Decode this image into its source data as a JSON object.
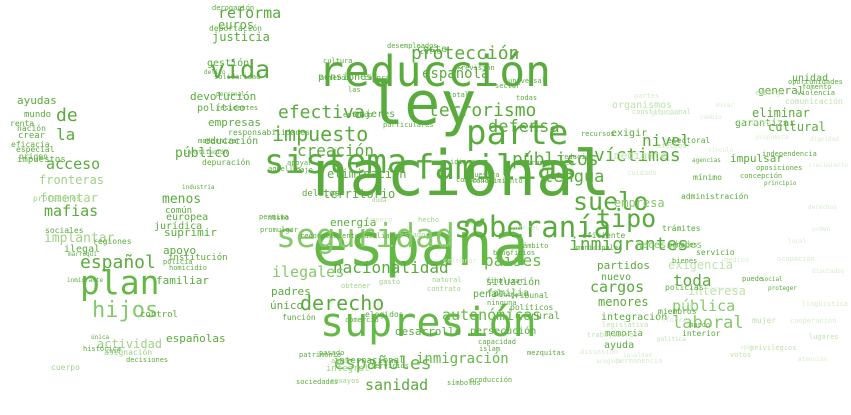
{
  "colors": {
    "c0": "#5aab3d",
    "c1": "#64b846",
    "c2": "#72c052",
    "c3": "#86c96a",
    "c4": "#9fd387",
    "c5": "#bfe2ae",
    "c6": "#d6edcb"
  },
  "words": [
    {
      "text": "nacional",
      "color": "c0"
    },
    {
      "text": "españa",
      "color": "c1"
    },
    {
      "text": "ley",
      "color": "c0"
    },
    {
      "text": "reducción",
      "color": "c0"
    },
    {
      "text": "supresión",
      "color": "c1"
    },
    {
      "text": "sistema",
      "color": "c0"
    },
    {
      "text": "familias",
      "color": "c0"
    },
    {
      "text": "parte",
      "color": "c0"
    },
    {
      "text": "seguridad",
      "color": "c3"
    },
    {
      "text": "plan",
      "color": "c1"
    },
    {
      "text": "soberanía",
      "color": "c0"
    },
    {
      "text": "suelo",
      "color": "c0"
    },
    {
      "text": "hijos",
      "color": "c3"
    },
    {
      "text": "tipo",
      "color": "c0"
    },
    {
      "text": "protección",
      "color": "c0"
    },
    {
      "text": "terrorismo",
      "color": "c0"
    },
    {
      "text": "impuesto",
      "color": "c0"
    },
    {
      "text": "efectiva",
      "color": "c0"
    },
    {
      "text": "derecho",
      "color": "c0"
    },
    {
      "text": "vida",
      "color": "c0"
    },
    {
      "text": "españoles",
      "color": "c1"
    },
    {
      "text": "públicos",
      "color": "c0"
    },
    {
      "text": "lengua",
      "color": "c0"
    },
    {
      "text": "víctimas",
      "color": "c0"
    },
    {
      "text": "inmigrantes",
      "color": "c0"
    },
    {
      "text": "nacionalidad",
      "color": "c0"
    },
    {
      "text": "autonómicas",
      "color": "c1"
    },
    {
      "text": "defensa",
      "color": "c0"
    },
    {
      "text": "creación",
      "color": "c0"
    },
    {
      "text": "español",
      "color": "c0"
    },
    {
      "text": "española",
      "color": "c0"
    },
    {
      "text": "nivel",
      "color": "c0"
    },
    {
      "text": "países",
      "color": "c1"
    },
    {
      "text": "reforma",
      "color": "c0"
    },
    {
      "text": "acceso",
      "color": "c0"
    },
    {
      "text": "ilegales",
      "color": "c3"
    },
    {
      "text": "laboral",
      "color": "c3"
    },
    {
      "text": "toda",
      "color": "c0"
    },
    {
      "text": "pública",
      "color": "c3"
    },
    {
      "text": "cargos",
      "color": "c0"
    },
    {
      "text": "sanidad",
      "color": "c0"
    },
    {
      "text": "inmigración",
      "color": "c1"
    },
    {
      "text": "de",
      "color": "c0"
    },
    {
      "text": "la",
      "color": "c0"
    },
    {
      "text": "eliminación",
      "color": "c0"
    },
    {
      "text": "mafias",
      "color": "c0"
    },
    {
      "text": "justicia",
      "color": "c0"
    },
    {
      "text": "menos",
      "color": "c0"
    },
    {
      "text": "territorio",
      "color": "c0"
    },
    {
      "text": "desarrollo",
      "color": "c0"
    },
    {
      "text": "menores",
      "color": "c0"
    },
    {
      "text": "pensiones",
      "color": "c0"
    },
    {
      "text": "mujeres",
      "color": "c0"
    },
    {
      "text": "persecución",
      "color": "c0"
    },
    {
      "text": "empresas",
      "color": "c0"
    },
    {
      "text": "político",
      "color": "c0"
    },
    {
      "text": "ayudas",
      "color": "c0"
    },
    {
      "text": "euros",
      "color": "c0"
    },
    {
      "text": "general",
      "color": "c0"
    },
    {
      "text": "empresa",
      "color": "c3"
    },
    {
      "text": "familiar",
      "color": "c0"
    },
    {
      "text": "padres",
      "color": "c0"
    },
    {
      "text": "europea",
      "color": "c0"
    },
    {
      "text": "situación",
      "color": "c0"
    },
    {
      "text": "integración",
      "color": "c0"
    },
    {
      "text": "apoyo",
      "color": "c0"
    },
    {
      "text": "suprimir",
      "color": "c0"
    },
    {
      "text": "devolución",
      "color": "c0"
    },
    {
      "text": "público",
      "color": "c0"
    },
    {
      "text": "educación",
      "color": "c0"
    },
    {
      "text": "partidos",
      "color": "c0"
    },
    {
      "text": "nuevo",
      "color": "c0"
    },
    {
      "text": "rural",
      "color": "c0"
    },
    {
      "text": "penal",
      "color": "c0"
    },
    {
      "text": "familia",
      "color": "c0"
    },
    {
      "text": "cultural",
      "color": "c0"
    },
    {
      "text": "eliminar",
      "color": "c0"
    },
    {
      "text": "garantizar",
      "color": "c0"
    },
    {
      "text": "impulsar",
      "color": "c0"
    },
    {
      "text": "exigir",
      "color": "c0"
    },
    {
      "text": "españolas",
      "color": "c0"
    },
    {
      "text": "único",
      "color": "c0"
    },
    {
      "text": "fomentar",
      "color": "c4"
    },
    {
      "text": "implantar",
      "color": "c4"
    },
    {
      "text": "fronteras",
      "color": "c4"
    },
    {
      "text": "actividad",
      "color": "c4"
    },
    {
      "text": "exigencia",
      "color": "c5"
    },
    {
      "text": "interesa",
      "color": "c5"
    },
    {
      "text": "organismos",
      "color": "c5"
    },
    {
      "text": "mediante",
      "color": "c5"
    },
    {
      "text": "necesidades",
      "color": "c3"
    },
    {
      "text": "unidad",
      "color": "c0"
    },
    {
      "text": "gestión",
      "color": "c0"
    },
    {
      "text": "mundo",
      "color": "c0"
    },
    {
      "text": "crear",
      "color": "c0"
    },
    {
      "text": "origen",
      "color": "c0"
    },
    {
      "text": "sociales",
      "color": "c0"
    },
    {
      "text": "impuestos",
      "color": "c0"
    },
    {
      "text": "ilegal",
      "color": "c0"
    },
    {
      "text": "jurídica",
      "color": "c0"
    },
    {
      "text": "común",
      "color": "c0"
    },
    {
      "text": "institución",
      "color": "c0"
    },
    {
      "text": "regiones",
      "color": "c0"
    },
    {
      "text": "energía",
      "color": "c0"
    },
    {
      "text": "comercio",
      "color": "c0"
    },
    {
      "text": "función",
      "color": "c0"
    },
    {
      "text": "elegidos",
      "color": "c0"
    },
    {
      "text": "políticos",
      "color": "c0"
    },
    {
      "text": "tribunal",
      "color": "c0"
    },
    {
      "text": "coste",
      "color": "c0"
    },
    {
      "text": "control",
      "color": "c0"
    },
    {
      "text": "ayuda",
      "color": "c0"
    },
    {
      "text": "memoria",
      "color": "c0"
    },
    {
      "text": "policías",
      "color": "c0"
    },
    {
      "text": "miembros",
      "color": "c0"
    },
    {
      "text": "internacional",
      "color": "c0"
    },
    {
      "text": "integral",
      "color": "c4"
    },
    {
      "text": "producción",
      "color": "c0"
    },
    {
      "text": "capacidad",
      "color": "c0"
    },
    {
      "text": "administración",
      "color": "c0"
    },
    {
      "text": "trámites",
      "color": "c0"
    },
    {
      "text": "mínimo",
      "color": "c0"
    },
    {
      "text": "electoral",
      "color": "c0"
    },
    {
      "text": "responsabilidades",
      "color": "c0"
    },
    {
      "text": "particulares",
      "color": "c0"
    },
    {
      "text": "delitos",
      "color": "c0"
    },
    {
      "text": "combatir",
      "color": "c0"
    },
    {
      "text": "depuración",
      "color": "c0"
    },
    {
      "text": "deportación",
      "color": "c0"
    },
    {
      "text": "derogación",
      "color": "c0"
    },
    {
      "text": "revisión",
      "color": "c0"
    },
    {
      "text": "solidaridad",
      "color": "c0"
    },
    {
      "text": "residentes",
      "color": "c0"
    },
    {
      "text": "modernizar",
      "color": "c0"
    },
    {
      "text": "policía",
      "color": "c0"
    },
    {
      "text": "mezquitas",
      "color": "c0"
    },
    {
      "text": "idioma",
      "color": "c0"
    },
    {
      "text": "histórica",
      "color": "c0"
    },
    {
      "text": "decisiones",
      "color": "c0"
    },
    {
      "text": "sociedades",
      "color": "c0"
    },
    {
      "text": "islam",
      "color": "c0"
    },
    {
      "text": "símbolos",
      "color": "c0"
    },
    {
      "text": "servicios",
      "color": "c0"
    },
    {
      "text": "universal",
      "color": "c0"
    },
    {
      "text": "sector",
      "color": "c0"
    },
    {
      "text": "transporte",
      "color": "c0"
    },
    {
      "text": "conocimiento",
      "color": "c0"
    },
    {
      "text": "nuestra",
      "color": "c0"
    },
    {
      "text": "interior",
      "color": "c0"
    },
    {
      "text": "marco",
      "color": "c0"
    },
    {
      "text": "social",
      "color": "c0"
    },
    {
      "text": "puede",
      "color": "c0"
    },
    {
      "text": "penales",
      "color": "c0"
    },
    {
      "text": "proteger",
      "color": "c0"
    },
    {
      "text": "bienes",
      "color": "c0"
    },
    {
      "text": "servicio",
      "color": "c0"
    },
    {
      "text": "principio",
      "color": "c0"
    },
    {
      "text": "oposiciones",
      "color": "c0"
    },
    {
      "text": "concepción",
      "color": "c0"
    },
    {
      "text": "independencia",
      "color": "c0"
    },
    {
      "text": "oportunidades",
      "color": "c0"
    },
    {
      "text": "violencia",
      "color": "c0"
    },
    {
      "text": "fomento",
      "color": "c0"
    },
    {
      "text": "municipales",
      "color": "c0"
    },
    {
      "text": "constitucional",
      "color": "c5"
    },
    {
      "text": "mujer",
      "color": "c5"
    },
    {
      "text": "lugares",
      "color": "c5"
    },
    {
      "text": "votos",
      "color": "c5"
    },
    {
      "text": "privilegios",
      "color": "c5"
    },
    {
      "text": "trabajadores",
      "color": "c5"
    },
    {
      "text": "legislativa",
      "color": "c5"
    },
    {
      "text": "política",
      "color": "c5"
    },
    {
      "text": "efectos",
      "color": "c5"
    },
    {
      "text": "embargo",
      "color": "c5"
    },
    {
      "text": "comunicación",
      "color": "c5"
    },
    {
      "text": "agencias",
      "color": "c0"
    },
    {
      "text": "desempleados",
      "color": "c0"
    },
    {
      "text": "culto",
      "color": "c0"
    },
    {
      "text": "cultura",
      "color": "c0"
    },
    {
      "text": "compra",
      "color": "c0"
    },
    {
      "text": "total",
      "color": "c0"
    },
    {
      "text": "todas",
      "color": "c0"
    },
    {
      "text": "reducir",
      "color": "c0"
    },
    {
      "text": "recursos",
      "color": "c0"
    },
    {
      "text": "arraigo",
      "color": "c0"
    },
    {
      "text": "finalizar",
      "color": "c0"
    },
    {
      "text": "beneficios",
      "color": "c0"
    },
    {
      "text": "ninguna",
      "color": "c0"
    },
    {
      "text": "patrimonio",
      "color": "c0"
    },
    {
      "text": "pasado",
      "color": "c0"
    },
    {
      "text": "apoyar",
      "color": "c0"
    },
    {
      "text": "aquellos",
      "color": "c0"
    },
    {
      "text": "bajo",
      "color": "c0"
    },
    {
      "text": "permita",
      "color": "c0"
    },
    {
      "text": "promulgar",
      "color": "c0"
    },
    {
      "text": "reconocimiento",
      "color": "c0"
    },
    {
      "text": "familiares",
      "color": "c0"
    },
    {
      "text": "ámbito",
      "color": "c0"
    },
    {
      "text": "mismo",
      "color": "c0"
    },
    {
      "text": "número",
      "color": "c0"
    },
    {
      "text": "entrado",
      "color": "c0"
    },
    {
      "text": "las",
      "color": "c0"
    },
    {
      "text": "eficiente",
      "color": "c0"
    },
    {
      "text": "industria",
      "color": "c0"
    },
    {
      "text": "constitución",
      "color": "c0"
    },
    {
      "text": "personal",
      "color": "c0"
    },
    {
      "text": "nación",
      "color": "c0"
    },
    {
      "text": "renta",
      "color": "c0"
    },
    {
      "text": "eficacia",
      "color": "c0"
    },
    {
      "text": "especial",
      "color": "c0"
    },
    {
      "text": "marroquí",
      "color": "c0"
    },
    {
      "text": "inmigrante",
      "color": "c0"
    },
    {
      "text": "delito",
      "color": "c0"
    },
    {
      "text": "única",
      "color": "c0"
    },
    {
      "text": "caso",
      "color": "c0"
    },
    {
      "text": "homicidio",
      "color": "c0"
    },
    {
      "text": "profesores",
      "color": "c4"
    },
    {
      "text": "asignación",
      "color": "c4"
    },
    {
      "text": "cuerpo",
      "color": "c4"
    },
    {
      "text": "ensayos",
      "color": "c4"
    },
    {
      "text": "natural",
      "color": "c4"
    },
    {
      "text": "gasto",
      "color": "c4"
    },
    {
      "text": "agua",
      "color": "c4"
    },
    {
      "text": "obtener",
      "color": "c4"
    },
    {
      "text": "duda",
      "color": "c4"
    },
    {
      "text": "hecho",
      "color": "c4"
    },
    {
      "text": "contrato",
      "color": "c4"
    },
    {
      "text": "estado",
      "color": "c4"
    },
    {
      "text": "celebrar",
      "color": "c6"
    },
    {
      "text": "genero",
      "color": "c6"
    },
    {
      "text": "interés",
      "color": "c6"
    },
    {
      "text": "disuasión",
      "color": "c6"
    },
    {
      "text": "igualdad",
      "color": "c6"
    },
    {
      "text": "reforzar",
      "color": "c6"
    },
    {
      "text": "cooperación",
      "color": "c6"
    },
    {
      "text": "apoyo",
      "color": "c6"
    },
    {
      "text": "atención",
      "color": "c6"
    },
    {
      "text": "cuidado",
      "color": "c6"
    },
    {
      "text": "vínculo",
      "color": "c6"
    },
    {
      "text": "medios",
      "color": "c6"
    },
    {
      "text": "ocupación",
      "color": "c6"
    },
    {
      "text": "diputados",
      "color": "c6"
    },
    {
      "text": "lingüística",
      "color": "c6"
    },
    {
      "text": "entornos",
      "color": "c6"
    },
    {
      "text": "libre",
      "color": "c6"
    },
    {
      "text": "permanencia",
      "color": "c6"
    },
    {
      "text": "acogida",
      "color": "c6"
    },
    {
      "text": "gracias",
      "color": "c6"
    },
    {
      "text": "partes",
      "color": "c6"
    },
    {
      "text": "cambio",
      "color": "c6"
    },
    {
      "text": "ciudades",
      "color": "c6"
    },
    {
      "text": "mirar",
      "color": "c6"
    },
    {
      "text": "propuesta",
      "color": "c6"
    },
    {
      "text": "dignidad",
      "color": "c6"
    },
    {
      "text": "crecimiento",
      "color": "c6"
    },
    {
      "text": "derechos",
      "color": "c6"
    },
    {
      "text": "orden",
      "color": "c6"
    },
    {
      "text": "local",
      "color": "c6"
    }
  ]
}
